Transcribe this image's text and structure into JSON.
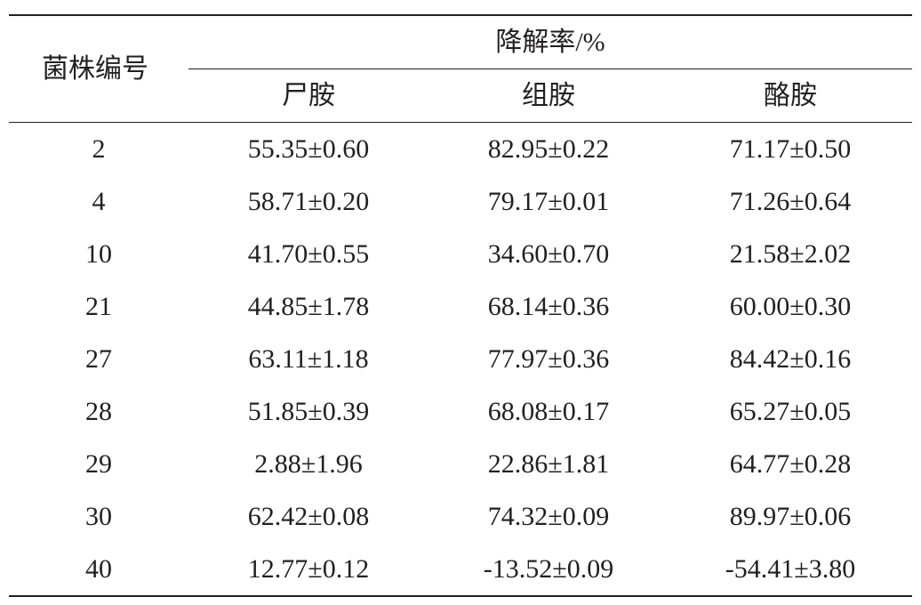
{
  "table": {
    "strain_header": "菌株编号",
    "group_header": "降解率/%",
    "columns": [
      "尸胺",
      "组胺",
      "酪胺"
    ],
    "rows": [
      {
        "strain": "2",
        "values": [
          "55.35±0.60",
          "82.95±0.22",
          "71.17±0.50"
        ]
      },
      {
        "strain": "4",
        "values": [
          "58.71±0.20",
          "79.17±0.01",
          "71.26±0.64"
        ]
      },
      {
        "strain": "10",
        "values": [
          "41.70±0.55",
          "34.60±0.70",
          "21.58±2.02"
        ]
      },
      {
        "strain": "21",
        "values": [
          "44.85±1.78",
          "68.14±0.36",
          "60.00±0.30"
        ]
      },
      {
        "strain": "27",
        "values": [
          "63.11±1.18",
          "77.97±0.36",
          "84.42±0.16"
        ]
      },
      {
        "strain": "28",
        "values": [
          "51.85±0.39",
          "68.08±0.17",
          "65.27±0.05"
        ]
      },
      {
        "strain": "29",
        "values": [
          "2.88±1.96",
          "22.86±1.81",
          "64.77±0.28"
        ]
      },
      {
        "strain": "30",
        "values": [
          "62.42±0.08",
          "74.32±0.09",
          "89.97±0.06"
        ]
      },
      {
        "strain": "40",
        "values": [
          "12.77±0.12",
          "-13.52±0.09",
          "-54.41±3.80"
        ]
      }
    ]
  }
}
